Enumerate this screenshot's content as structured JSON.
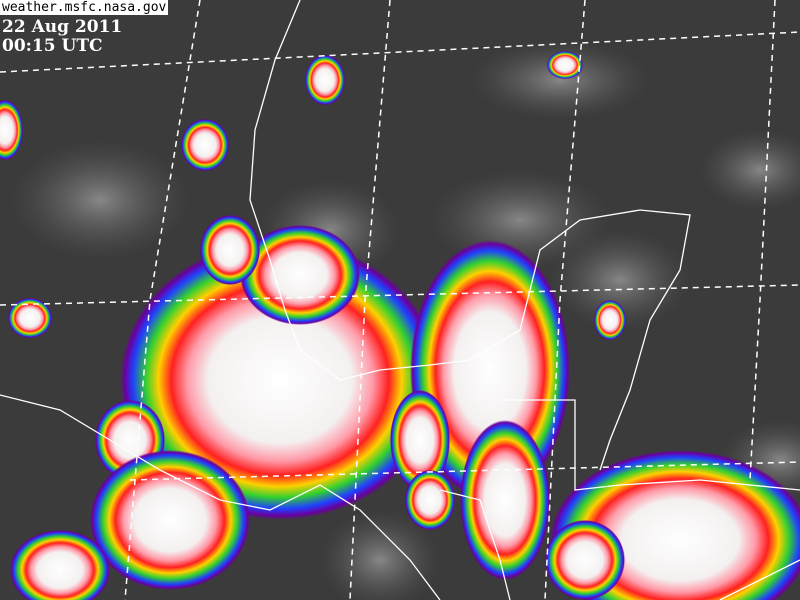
{
  "image": {
    "source_label": "weather.msfc.nasa.gov",
    "date": "22 Aug 2011",
    "time": "00:15 UTC",
    "colors": {
      "background_gray": "#3b3b3b",
      "grid_lines": "#ffffff",
      "coastlines": "#ffffff",
      "enhancement_scale": [
        "#ffffff",
        "#ff9aa8",
        "#ff2020",
        "#ffd000",
        "#30d030",
        "#2040ff",
        "#6a00a0"
      ]
    }
  }
}
